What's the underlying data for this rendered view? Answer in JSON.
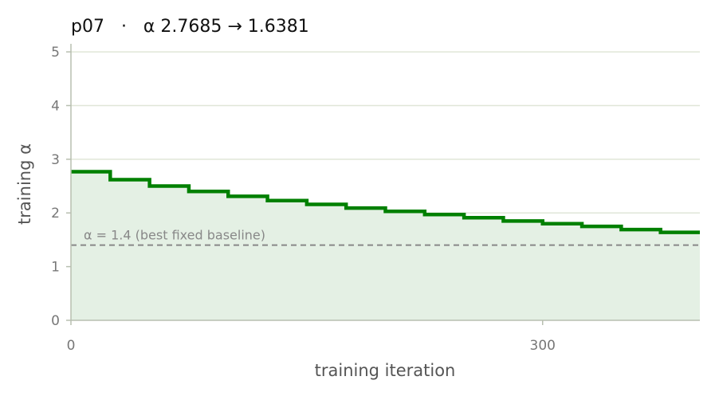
{
  "chart_data": {
    "type": "line",
    "title": "p07   ·   α 2.7685 → 1.6381",
    "xlabel": "training iteration",
    "ylabel": "training α",
    "xlim": [
      0,
      400
    ],
    "ylim": [
      0,
      5.15
    ],
    "x_ticks": [
      0,
      300
    ],
    "x_tick_labels": [
      "0",
      "300"
    ],
    "y_ticks": [
      0,
      1,
      2,
      3,
      4,
      5
    ],
    "y_tick_labels": [
      "0",
      "1",
      "2",
      "3",
      "4",
      "5"
    ],
    "grid": "horizontal",
    "line_color": "#008000",
    "fill_color": "#e4f0e4",
    "step_edges": [
      0,
      25,
      50,
      75,
      100,
      125,
      150,
      175,
      200,
      225,
      250,
      275,
      300,
      325,
      350,
      375,
      400
    ],
    "step_values": [
      2.7685,
      2.62,
      2.5,
      2.4,
      2.31,
      2.23,
      2.16,
      2.09,
      2.03,
      1.97,
      1.91,
      1.85,
      1.8,
      1.75,
      1.69,
      1.6381
    ],
    "baseline": {
      "value": 1.4,
      "label": "α = 1.4 (best fixed baseline)",
      "color": "#888888"
    }
  }
}
